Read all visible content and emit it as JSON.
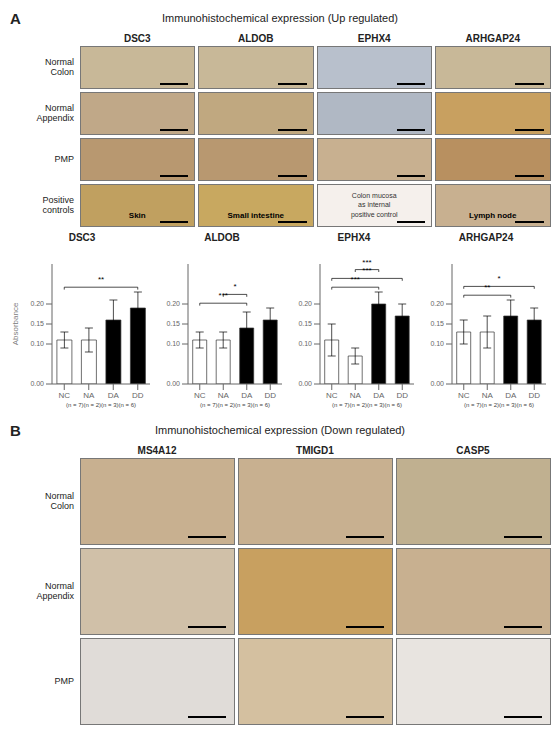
{
  "chart_data": [
    {
      "type": "image_grid",
      "title": "Immunohistochemical expression (Up regulated)",
      "annotations": [
        "A"
      ],
      "categories": [
        "DSC3",
        "ALDOB",
        "EPHX4",
        "ARHGAP24"
      ],
      "series": [
        {
          "name": "Normal\nColon",
          "colors": [
            "#c8b898",
            "#c8b898",
            "#b8c0cc",
            "#c8b898"
          ]
        },
        {
          "name": "Normal\nAppendix",
          "colors": [
            "#c0a888",
            "#c0a880",
            "#b0b8c4",
            "#c8a060"
          ]
        },
        {
          "name": "PMP",
          "colors": [
            "#b89870",
            "#b89870",
            "#c8b090",
            "#b89060"
          ]
        },
        {
          "name": "Positive\ncontrols",
          "colors": [
            "#c0a060",
            "#c8a860",
            "#f5f0ec",
            "#c8b090"
          ],
          "annotations": [
            "Skin",
            "Small intestine",
            "Colon mucosa\nas internal\npositive control",
            "Lymph node"
          ]
        }
      ]
    },
    {
      "type": "bar",
      "title": "DSC3",
      "categories": [
        "NC",
        "NA",
        "DA",
        "DD"
      ],
      "values": [
        0.11,
        0.11,
        0.16,
        0.19
      ],
      "errors": [
        0.02,
        0.03,
        0.05,
        0.04
      ],
      "colors": [
        "white",
        "white",
        "black",
        "black"
      ],
      "ylim": [
        0,
        0.3
      ],
      "yticks": [
        {
          "value": 0,
          "label": "0.00"
        },
        {
          "value": 0.1,
          "label": "0.10"
        },
        {
          "value": 0.15,
          "label": "0.15"
        },
        {
          "value": 0.2,
          "label": "0.20"
        }
      ],
      "ylabel": "Absorbance",
      "xlabel": "(n = 7)(n = 2)(n = 3)(n = 6)",
      "annotations": [
        {
          "from": "NC",
          "to": "DD",
          "text": "**"
        }
      ]
    },
    {
      "type": "bar",
      "title": "ALDOB",
      "categories": [
        "NC",
        "NA",
        "DA",
        "DD"
      ],
      "values": [
        0.11,
        0.11,
        0.14,
        0.16
      ],
      "errors": [
        0.02,
        0.02,
        0.04,
        0.03
      ],
      "colors": [
        "white",
        "white",
        "black",
        "black"
      ],
      "ylim": [
        0,
        0.3
      ],
      "yticks": [
        {
          "value": 0,
          "label": "0.00"
        },
        {
          "value": 0.1,
          "label": "0.10"
        },
        {
          "value": 0.15,
          "label": "0.15"
        },
        {
          "value": 0.2,
          "label": "0.20"
        }
      ],
      "xlabel": "(n = 7)(n = 2)(n = 3)(n = 6)",
      "annotations": [
        {
          "from": "NC",
          "to": "DA",
          "text": "***"
        },
        {
          "from": "NA",
          "to": "DA",
          "text": "*"
        }
      ]
    },
    {
      "type": "bar",
      "title": "EPHX4",
      "categories": [
        "NC",
        "NA",
        "DA",
        "DD"
      ],
      "values": [
        0.11,
        0.07,
        0.2,
        0.17
      ],
      "errors": [
        0.04,
        0.02,
        0.03,
        0.03
      ],
      "colors": [
        "white",
        "white",
        "black",
        "black"
      ],
      "ylim": [
        0,
        0.3
      ],
      "yticks": [
        {
          "value": 0,
          "label": "0.00"
        },
        {
          "value": 0.1,
          "label": "0.10"
        },
        {
          "value": 0.15,
          "label": "0.15"
        },
        {
          "value": 0.2,
          "label": "0.20"
        }
      ],
      "xlabel": "(n = 7)(n = 2)(n = 3)(n = 6)",
      "annotations": [
        {
          "from": "NC",
          "to": "DA",
          "text": "***"
        },
        {
          "from": "NC",
          "to": "DD",
          "text": "***"
        },
        {
          "from": "NA",
          "to": "DA",
          "text": "***"
        }
      ]
    },
    {
      "type": "bar",
      "title": "ARHGAP24",
      "categories": [
        "NC",
        "NA",
        "DA",
        "DD"
      ],
      "values": [
        0.13,
        0.13,
        0.17,
        0.16
      ],
      "errors": [
        0.03,
        0.04,
        0.04,
        0.03
      ],
      "colors": [
        "white",
        "white",
        "black",
        "black"
      ],
      "ylim": [
        0,
        0.3
      ],
      "yticks": [
        {
          "value": 0,
          "label": "0.00"
        },
        {
          "value": 0.1,
          "label": "0.10"
        },
        {
          "value": 0.15,
          "label": "0.15"
        },
        {
          "value": 0.2,
          "label": "0.20"
        }
      ],
      "xlabel": "(n = 7)(n = 2)(n = 3)(n = 6)",
      "annotations": [
        {
          "from": "NC",
          "to": "DA",
          "text": "**"
        },
        {
          "from": "NC",
          "to": "DD",
          "text": "*"
        }
      ]
    },
    {
      "type": "image_grid",
      "title": "Immunohistochemical expression (Down regulated)",
      "annotations": [
        "B"
      ],
      "categories": [
        "MS4A12",
        "TMIGD1",
        "CASP5"
      ],
      "series": [
        {
          "name": "Normal\nColon",
          "colors": [
            "#c8b090",
            "#c8b090",
            "#c0b090"
          ]
        },
        {
          "name": "Normal\nAppendix",
          "colors": [
            "#d0c0a8",
            "#c8a060",
            "#c8b090"
          ]
        },
        {
          "name": "PMP",
          "colors": [
            "#e0dcd8",
            "#d4c0a0",
            "#e8e4e0"
          ]
        }
      ]
    }
  ]
}
